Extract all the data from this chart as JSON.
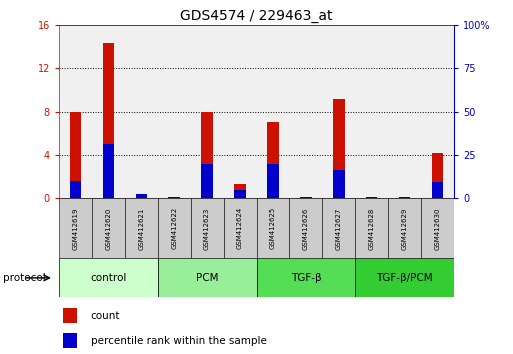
{
  "title": "GDS4574 / 229463_at",
  "samples": [
    "GSM412619",
    "GSM412620",
    "GSM412621",
    "GSM412622",
    "GSM412623",
    "GSM412624",
    "GSM412625",
    "GSM412626",
    "GSM412627",
    "GSM412628",
    "GSM412629",
    "GSM412630"
  ],
  "count_values": [
    8.0,
    14.3,
    0.05,
    0.05,
    8.0,
    1.3,
    7.0,
    0.05,
    9.2,
    0.05,
    0.05,
    4.2
  ],
  "percentile_values": [
    10.0,
    31.0,
    2.5,
    0.5,
    20.0,
    5.0,
    20.0,
    0.5,
    16.0,
    0.5,
    0.5,
    9.5
  ],
  "groups": [
    {
      "label": "control",
      "start": 0,
      "end": 3,
      "color": "#ccffcc"
    },
    {
      "label": "PCM",
      "start": 3,
      "end": 6,
      "color": "#99ee99"
    },
    {
      "label": "TGF-β",
      "start": 6,
      "end": 9,
      "color": "#55dd55"
    },
    {
      "label": "TGF-β/PCM",
      "start": 9,
      "end": 12,
      "color": "#33cc33"
    }
  ],
  "ylim_left": [
    0,
    16
  ],
  "ylim_right": [
    0,
    100
  ],
  "yticks_left": [
    0,
    4,
    8,
    12,
    16
  ],
  "yticks_right": [
    0,
    25,
    50,
    75,
    100
  ],
  "bar_width": 0.35,
  "count_color": "#cc1100",
  "percentile_color": "#0000cc",
  "left_tick_color": "#cc1100",
  "right_tick_color": "#0000cc",
  "gridlines_at": [
    4,
    8,
    12
  ]
}
